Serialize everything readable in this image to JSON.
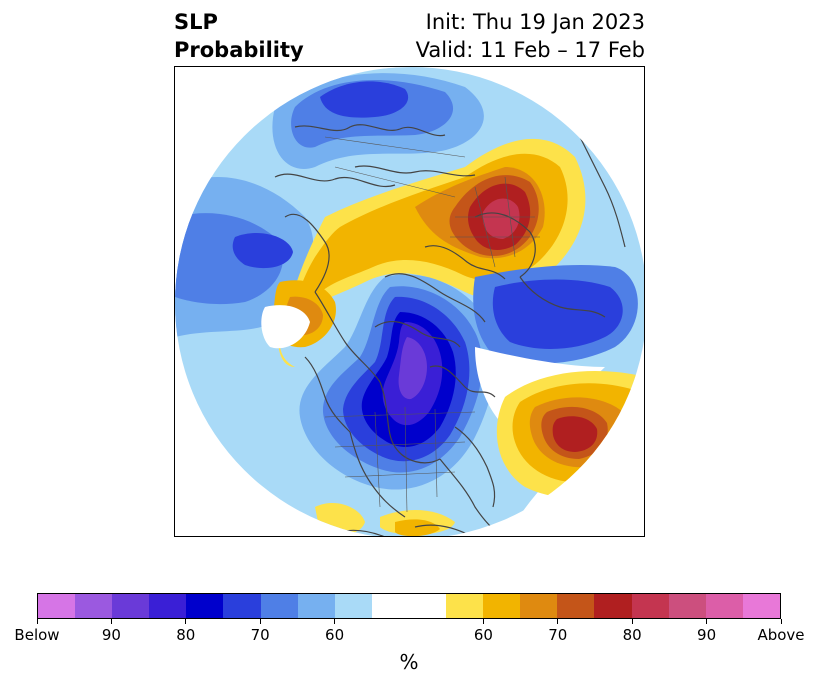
{
  "title": {
    "left_line1": "SLP",
    "left_line2": "Probability",
    "right_line1": "Init: Thu 19 Jan 2023",
    "right_line2": "Valid: 11 Feb – 17 Feb"
  },
  "colorbar": {
    "unit": "%",
    "colors": [
      "#d675e6",
      "#9b59e0",
      "#6a3ad8",
      "#3a1fd6",
      "#0000cc",
      "#2a3fdc",
      "#4f7fe6",
      "#76b0f0",
      "#a9daf7",
      "#ffffff",
      "#ffffff",
      "#fde24a",
      "#f2b400",
      "#df8a10",
      "#c45519",
      "#b01f20",
      "#c43550",
      "#cc4f7e",
      "#dc5ea8",
      "#e878d8"
    ],
    "ticks": [
      {
        "label": "Below",
        "frac": 0.0
      },
      {
        "label": "90",
        "frac": 0.1
      },
      {
        "label": "80",
        "frac": 0.2
      },
      {
        "label": "70",
        "frac": 0.3
      },
      {
        "label": "60",
        "frac": 0.4
      },
      {
        "label": "60",
        "frac": 0.6
      },
      {
        "label": "70",
        "frac": 0.7
      },
      {
        "label": "80",
        "frac": 0.8
      },
      {
        "label": "90",
        "frac": 0.9
      },
      {
        "label": "Above",
        "frac": 1.0
      }
    ]
  },
  "map": {
    "projection": "north-polar-stereographic",
    "variable": "sea-level-pressure-probability",
    "colors": {
      "below_60": "#a9daf7",
      "below_65": "#76b0f0",
      "below_70": "#4f7fe6",
      "below_75": "#2a3fdc",
      "below_80": "#0000cc",
      "below_85": "#3a1fd6",
      "below_90": "#6a3ad8",
      "above_60": "#fde24a",
      "above_65": "#f2b400",
      "above_70": "#df8a10",
      "above_75": "#c45519",
      "above_80": "#b01f20",
      "above_85": "#c43550",
      "coastline": "#444444"
    }
  }
}
